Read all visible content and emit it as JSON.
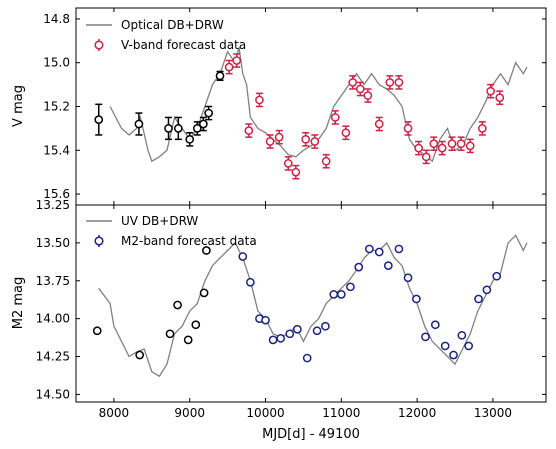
{
  "chart_data": [
    {
      "type": "scatter",
      "panel": "top",
      "xlabel": "",
      "ylabel": "V mag",
      "xlim": [
        7500,
        13700
      ],
      "ylim": [
        15.65,
        14.75
      ],
      "y_inverted": true,
      "yticks": [
        14.8,
        15.0,
        15.2,
        15.4,
        15.6
      ],
      "ytick_labels": [
        "14.8",
        "15.0",
        "15.2",
        "15.4",
        "15.6"
      ],
      "legend_position": "top-left",
      "model_curve": {
        "name": "Optical DB+DRW",
        "color": "#808080",
        "x": [
          7950,
          8100,
          8200,
          8300,
          8350,
          8450,
          8500,
          8600,
          8700,
          8800,
          8900,
          9000,
          9100,
          9200,
          9300,
          9400,
          9500,
          9600,
          9650,
          9700,
          9750,
          9800,
          9900,
          10000,
          10100,
          10200,
          10300,
          10400,
          10500,
          10600,
          10700,
          10800,
          10900,
          11000,
          11100,
          11200,
          11300,
          11400,
          11500,
          11600,
          11700,
          11800,
          11900,
          12000,
          12100,
          12200,
          12300,
          12400,
          12500,
          12600,
          12700,
          12800,
          12900,
          13000,
          13100,
          13200,
          13300,
          13400,
          13450
        ],
        "y": [
          15.2,
          15.3,
          15.33,
          15.3,
          15.25,
          15.4,
          15.45,
          15.43,
          15.4,
          15.25,
          15.3,
          15.35,
          15.3,
          15.2,
          15.1,
          15.05,
          14.95,
          15.0,
          14.93,
          15.05,
          15.1,
          15.25,
          15.3,
          15.32,
          15.35,
          15.38,
          15.42,
          15.43,
          15.4,
          15.38,
          15.35,
          15.3,
          15.2,
          15.15,
          15.1,
          15.05,
          15.1,
          15.05,
          15.1,
          15.12,
          15.15,
          15.2,
          15.35,
          15.4,
          15.42,
          15.45,
          15.35,
          15.3,
          15.4,
          15.38,
          15.3,
          15.25,
          15.18,
          15.1,
          15.05,
          15.1,
          15.0,
          15.05,
          15.02
        ]
      },
      "series": [
        {
          "name": "",
          "color": "#000000",
          "x": [
            7800,
            8330,
            8720,
            8850,
            9000,
            9100,
            9180,
            9250,
            9400
          ],
          "y": [
            15.26,
            15.28,
            15.3,
            15.3,
            15.35,
            15.3,
            15.28,
            15.23,
            15.06
          ],
          "yerr": [
            0.07,
            0.05,
            0.05,
            0.05,
            0.03,
            0.03,
            0.03,
            0.03,
            0.02
          ]
        },
        {
          "name": "V-band forecast data",
          "color": "#cc2244",
          "x": [
            9520,
            9620,
            9780,
            9920,
            10060,
            10180,
            10300,
            10400,
            10530,
            10650,
            10800,
            10920,
            11060,
            11150,
            11250,
            11350,
            11500,
            11640,
            11760,
            11880,
            12020,
            12120,
            12220,
            12330,
            12460,
            12580,
            12700,
            12860,
            12970,
            13090
          ],
          "y": [
            15.02,
            14.99,
            15.31,
            15.17,
            15.36,
            15.34,
            15.46,
            15.5,
            15.35,
            15.36,
            15.45,
            15.25,
            15.32,
            15.09,
            15.12,
            15.15,
            15.28,
            15.09,
            15.09,
            15.3,
            15.39,
            15.43,
            15.37,
            15.39,
            15.37,
            15.37,
            15.38,
            15.3,
            15.13,
            15.16
          ],
          "yerr": [
            0.03,
            0.03,
            0.03,
            0.03,
            0.03,
            0.03,
            0.03,
            0.03,
            0.03,
            0.03,
            0.03,
            0.03,
            0.03,
            0.03,
            0.03,
            0.03,
            0.03,
            0.03,
            0.03,
            0.03,
            0.03,
            0.03,
            0.03,
            0.03,
            0.03,
            0.03,
            0.03,
            0.03,
            0.03,
            0.03
          ]
        }
      ]
    },
    {
      "type": "scatter",
      "panel": "bottom",
      "xlabel": "MJD[d] - 49100",
      "ylabel": "M2 mag",
      "xlim": [
        7500,
        13700
      ],
      "ylim": [
        14.55,
        13.25
      ],
      "y_inverted": true,
      "xticks": [
        8000,
        9000,
        10000,
        11000,
        12000,
        13000
      ],
      "xtick_labels": [
        "8000",
        "9000",
        "10000",
        "11000",
        "12000",
        "13000"
      ],
      "yticks": [
        13.25,
        13.5,
        13.75,
        14.0,
        14.25,
        14.5
      ],
      "ytick_labels": [
        "13.25",
        "13.50",
        "13.75",
        "14.00",
        "14.25",
        "14.50"
      ],
      "legend_position": "top-left",
      "model_curve": {
        "name": "UV DB+DRW",
        "color": "#808080",
        "x": [
          7800,
          7950,
          8000,
          8100,
          8200,
          8300,
          8400,
          8500,
          8600,
          8700,
          8800,
          8900,
          9000,
          9100,
          9200,
          9300,
          9400,
          9500,
          9600,
          9700,
          9800,
          9900,
          10000,
          10100,
          10200,
          10300,
          10400,
          10500,
          10600,
          10700,
          10800,
          10900,
          11000,
          11100,
          11200,
          11300,
          11400,
          11500,
          11600,
          11700,
          11800,
          11900,
          12000,
          12100,
          12200,
          12300,
          12400,
          12500,
          12600,
          12700,
          12800,
          12900,
          13000,
          13100,
          13200,
          13300,
          13400,
          13450
        ],
        "y": [
          13.8,
          13.9,
          14.05,
          14.15,
          14.25,
          14.22,
          14.2,
          14.35,
          14.38,
          14.3,
          14.1,
          14.05,
          13.95,
          13.9,
          13.75,
          13.65,
          13.6,
          13.55,
          13.5,
          13.6,
          13.75,
          13.95,
          14.0,
          14.1,
          14.12,
          14.1,
          14.05,
          14.15,
          14.05,
          14.0,
          13.9,
          13.85,
          13.8,
          13.75,
          13.68,
          13.6,
          13.55,
          13.55,
          13.5,
          13.6,
          13.65,
          13.8,
          13.9,
          14.05,
          14.15,
          14.2,
          14.25,
          14.3,
          14.2,
          14.1,
          13.95,
          13.85,
          13.75,
          13.7,
          13.5,
          13.45,
          13.55,
          13.5
        ]
      },
      "series": [
        {
          "name": "",
          "color": "#000000",
          "x": [
            7780,
            8340,
            8740,
            8840,
            8980,
            9080,
            9190,
            9220
          ],
          "y": [
            14.08,
            14.24,
            14.1,
            13.91,
            14.14,
            14.04,
            13.83,
            13.55
          ],
          "yerr": [
            0.012,
            0.012,
            0.012,
            0.012,
            0.012,
            0.012,
            0.012,
            0.012
          ]
        },
        {
          "name": "M2-band forecast data",
          "color": "#1a237e",
          "x": [
            9700,
            9800,
            9920,
            10000,
            10100,
            10200,
            10320,
            10420,
            10550,
            10680,
            10790,
            10900,
            11000,
            11120,
            11230,
            11370,
            11500,
            11620,
            11760,
            11880,
            11990,
            12110,
            12240,
            12370,
            12480,
            12590,
            12680,
            12810,
            12920,
            13050
          ],
          "y": [
            13.59,
            13.76,
            14.0,
            14.01,
            14.14,
            14.13,
            14.1,
            14.07,
            14.26,
            14.08,
            14.05,
            13.84,
            13.84,
            13.79,
            13.66,
            13.54,
            13.56,
            13.65,
            13.54,
            13.73,
            13.87,
            14.12,
            14.04,
            14.18,
            14.24,
            14.11,
            14.18,
            13.87,
            13.81,
            13.72
          ],
          "yerr": [
            0.012,
            0.012,
            0.012,
            0.012,
            0.012,
            0.012,
            0.012,
            0.012,
            0.012,
            0.012,
            0.012,
            0.012,
            0.012,
            0.012,
            0.012,
            0.012,
            0.012,
            0.012,
            0.012,
            0.012,
            0.012,
            0.012,
            0.012,
            0.012,
            0.012,
            0.012,
            0.012,
            0.012,
            0.012,
            0.012
          ]
        }
      ]
    }
  ]
}
